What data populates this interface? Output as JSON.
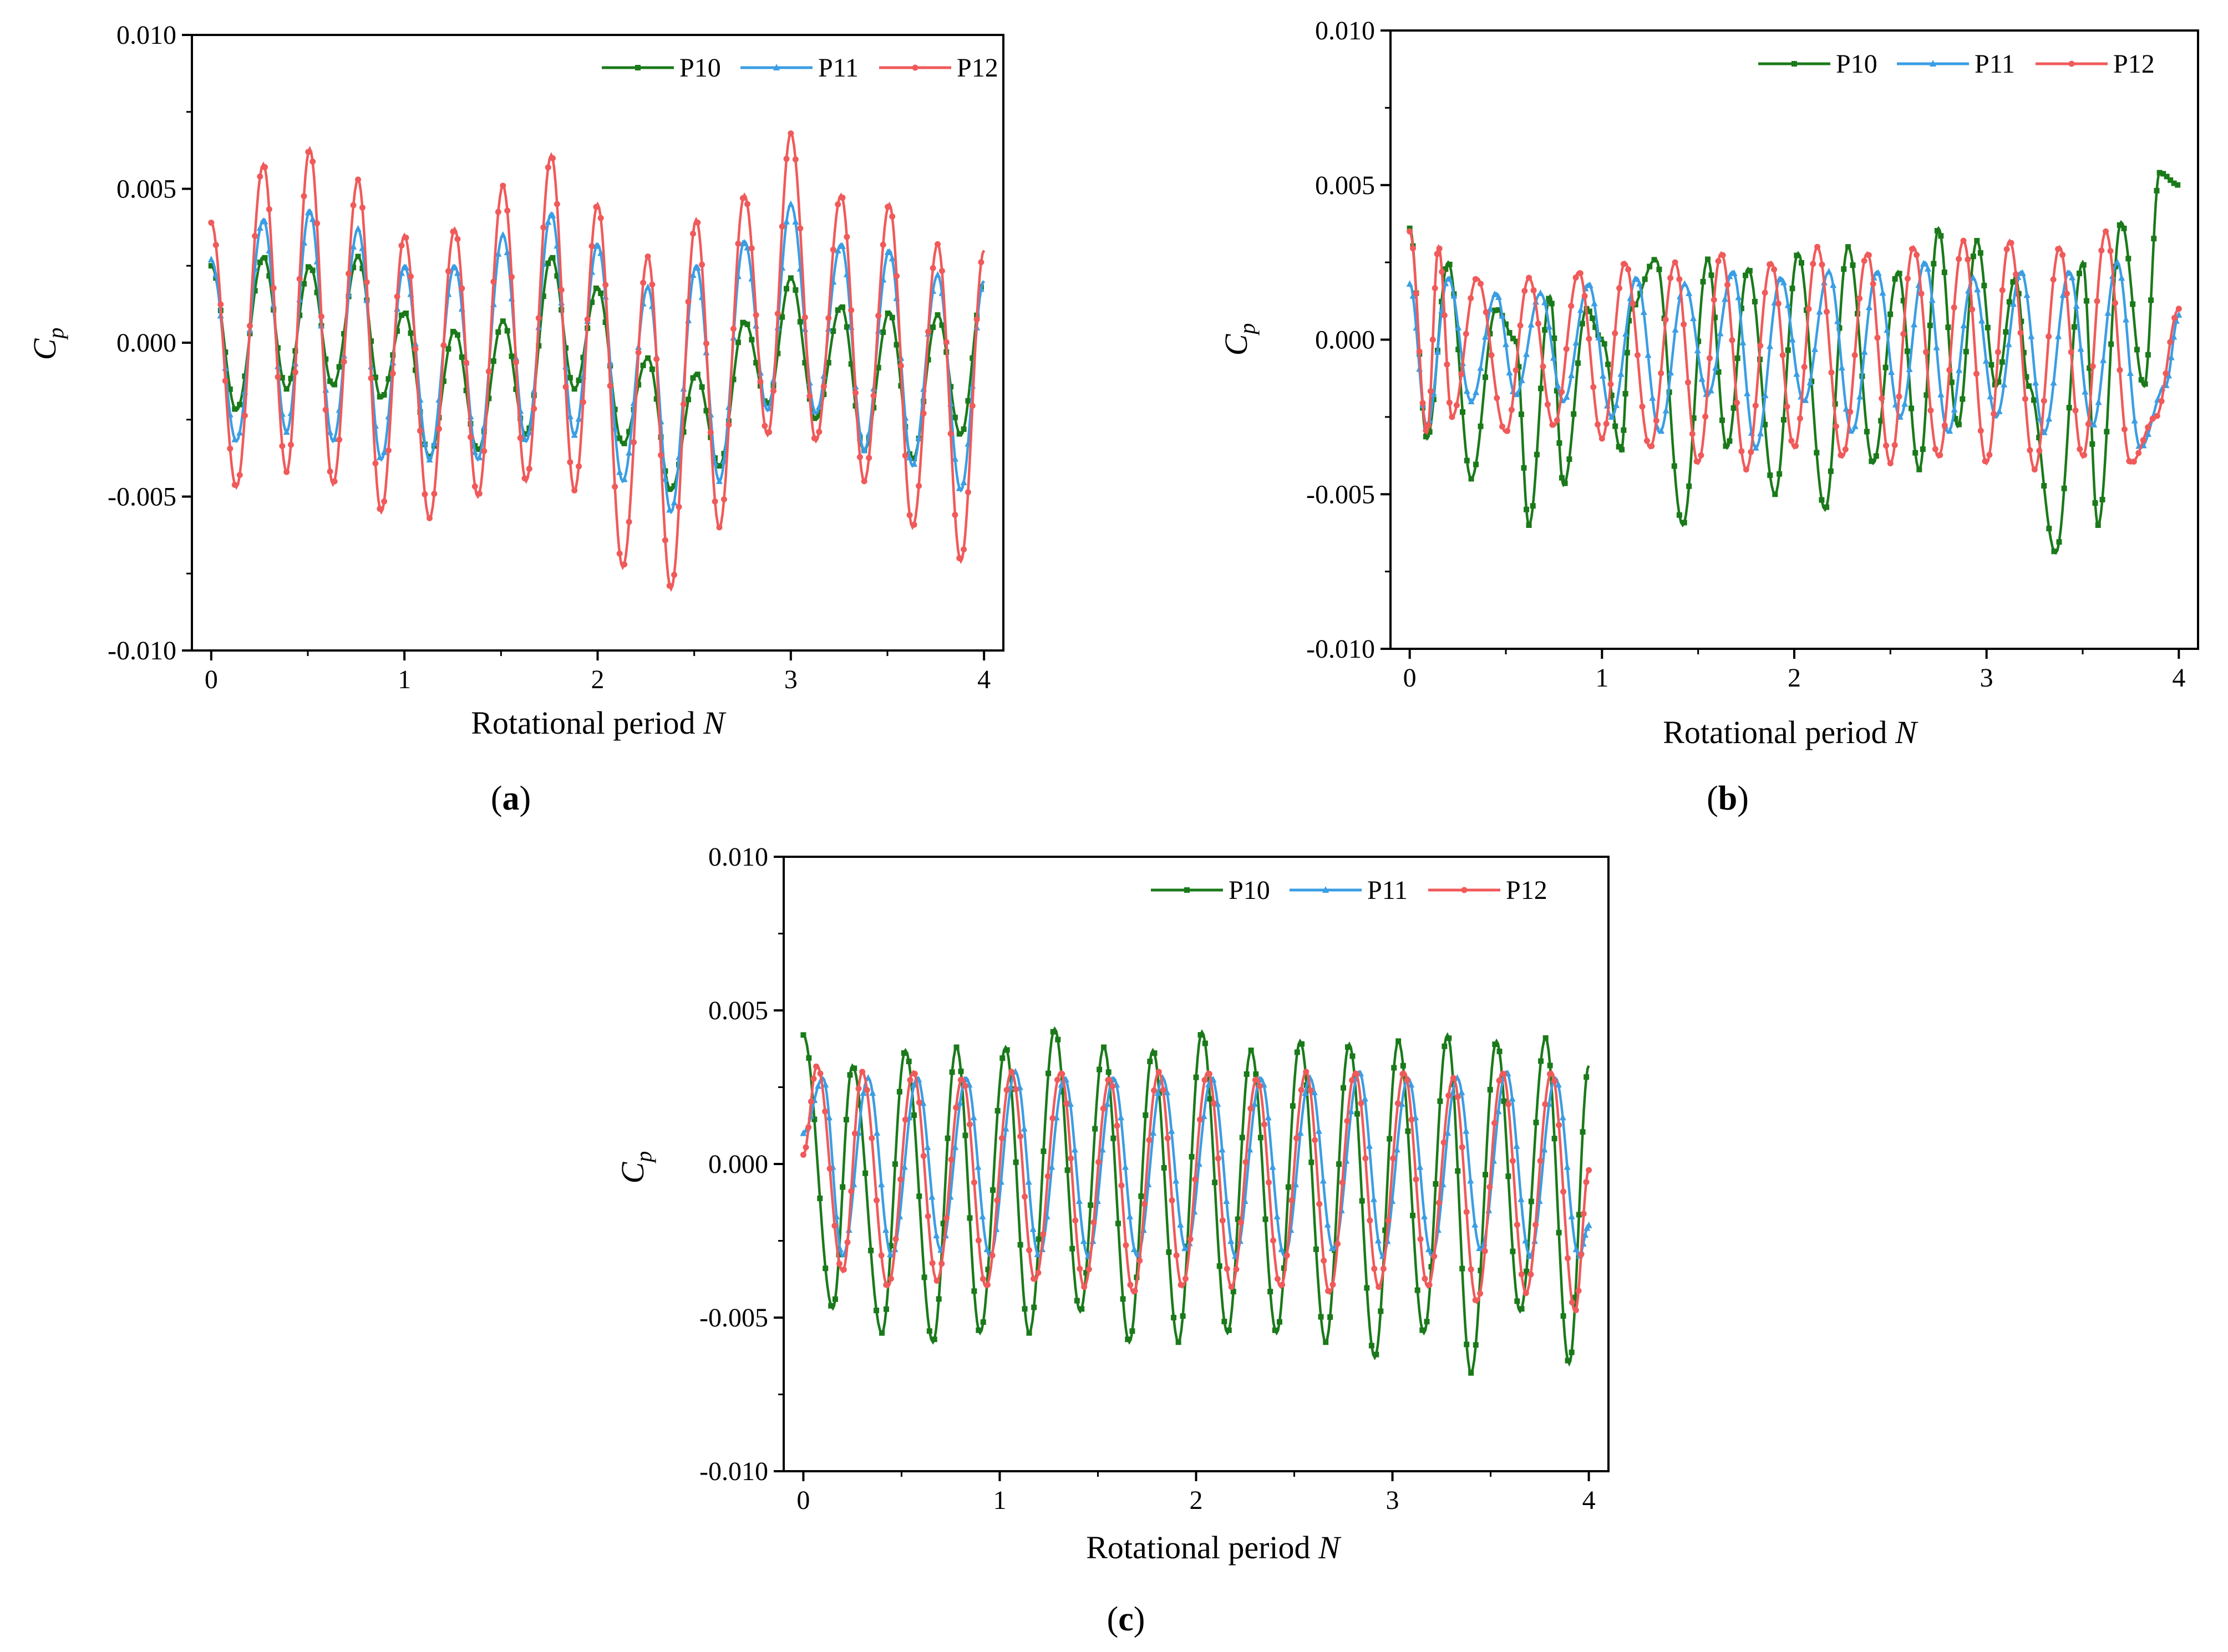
{
  "figure": {
    "captions": [
      "(a)",
      "(b)",
      "(c)"
    ],
    "caption_letters": [
      "a",
      "b",
      "c"
    ]
  },
  "chart_data": [
    {
      "id": "a",
      "type": "line",
      "title": "",
      "caption": "(a)",
      "xlabel": "Rotational period N",
      "xlabel_text": "Rotational period ",
      "xlabel_var": "N",
      "ylabel": "Cp",
      "ylabel_main": "C",
      "ylabel_sub": "p",
      "xlim": [
        -0.1,
        4.1
      ],
      "ylim": [
        -0.01,
        0.01
      ],
      "xticks": [
        0,
        1,
        2,
        3,
        4
      ],
      "xtick_labels": [
        "0",
        "1",
        "2",
        "3",
        "4"
      ],
      "yticks": [
        -0.01,
        -0.005,
        0.0,
        0.005,
        0.01
      ],
      "ytick_labels": [
        "-0.010",
        "-0.005",
        "0.000",
        "0.005",
        "0.010"
      ],
      "legend": [
        "P10",
        "P11",
        "P12"
      ],
      "legend_position": "top-right",
      "series": [
        {
          "name": "P10",
          "color": "#1a7a1a",
          "marker": "square",
          "x": [
            0,
            0.13,
            0.27,
            0.39,
            0.51,
            0.63,
            0.76,
            0.88,
            1.0,
            1.13,
            1.26,
            1.38,
            1.51,
            1.63,
            1.76,
            1.88,
            2.0,
            2.13,
            2.26,
            2.38,
            2.51,
            2.63,
            2.76,
            2.88,
            3.0,
            3.13,
            3.26,
            3.38,
            3.51,
            3.63,
            3.76,
            3.88,
            4.0
          ],
          "y": [
            0.0025,
            -0.0022,
            0.0028,
            -0.0015,
            0.0025,
            -0.0014,
            0.0028,
            -0.0018,
            0.001,
            -0.0037,
            0.0004,
            -0.0035,
            0.0007,
            -0.003,
            0.0028,
            -0.0015,
            0.0018,
            -0.0033,
            -0.0005,
            -0.0048,
            -0.001,
            -0.004,
            0.0007,
            -0.002,
            0.0021,
            -0.0025,
            0.0012,
            -0.0035,
            0.001,
            -0.0038,
            0.0009,
            -0.003,
            0.002
          ]
        },
        {
          "name": "P11",
          "color": "#3a9ee4",
          "marker": "triangle",
          "x": [
            0,
            0.13,
            0.27,
            0.39,
            0.51,
            0.63,
            0.76,
            0.88,
            1.0,
            1.13,
            1.26,
            1.38,
            1.51,
            1.63,
            1.76,
            1.88,
            2.0,
            2.13,
            2.26,
            2.38,
            2.51,
            2.63,
            2.76,
            2.88,
            3.0,
            3.13,
            3.26,
            3.38,
            3.51,
            3.63,
            3.76,
            3.88,
            4.0
          ],
          "y": [
            0.0027,
            -0.0032,
            0.004,
            -0.0029,
            0.0043,
            -0.0032,
            0.0037,
            -0.0038,
            0.0025,
            -0.0038,
            0.0025,
            -0.0038,
            0.0035,
            -0.0032,
            0.0042,
            -0.003,
            0.0032,
            -0.0045,
            0.0018,
            -0.0055,
            0.0025,
            -0.0045,
            0.0033,
            -0.0022,
            0.0045,
            -0.0023,
            0.0032,
            -0.0035,
            0.003,
            -0.004,
            0.0022,
            -0.0048,
            0.002
          ]
        },
        {
          "name": "P12",
          "color": "#f05a5a",
          "marker": "circle",
          "x": [
            0,
            0.13,
            0.27,
            0.39,
            0.51,
            0.63,
            0.76,
            0.88,
            1.0,
            1.13,
            1.26,
            1.38,
            1.51,
            1.63,
            1.76,
            1.88,
            2.0,
            2.13,
            2.26,
            2.38,
            2.51,
            2.63,
            2.76,
            2.88,
            3.0,
            3.13,
            3.26,
            3.38,
            3.51,
            3.63,
            3.76,
            3.88,
            4.0
          ],
          "y": [
            0.0039,
            -0.0047,
            0.0058,
            -0.0042,
            0.0063,
            -0.0046,
            0.0053,
            -0.0055,
            0.0035,
            -0.0057,
            0.0037,
            -0.005,
            0.0051,
            -0.0045,
            0.0061,
            -0.0048,
            0.0045,
            -0.0073,
            0.0028,
            -0.008,
            0.004,
            -0.006,
            0.0048,
            -0.003,
            0.0068,
            -0.0032,
            0.0048,
            -0.0045,
            0.0045,
            -0.006,
            0.0032,
            -0.0071,
            0.003
          ]
        }
      ]
    },
    {
      "id": "b",
      "type": "line",
      "title": "",
      "caption": "(b)",
      "xlabel": "Rotational period N",
      "xlabel_text": "Rotational period ",
      "xlabel_var": "N",
      "ylabel": "Cp",
      "ylabel_main": "C",
      "ylabel_sub": "p",
      "xlim": [
        -0.1,
        4.1
      ],
      "ylim": [
        -0.01,
        0.01
      ],
      "xticks": [
        0,
        1,
        2,
        3,
        4
      ],
      "xtick_labels": [
        "0",
        "1",
        "2",
        "3",
        "4"
      ],
      "yticks": [
        -0.01,
        -0.005,
        0.0,
        0.005,
        0.01
      ],
      "ytick_labels": [
        "-0.010",
        "-0.005",
        "0.000",
        "0.005",
        "0.010"
      ],
      "legend": [
        "P10",
        "P11",
        "P12"
      ],
      "legend_position": "top-right",
      "series": [
        {
          "name": "P10",
          "color": "#1a7a1a",
          "marker": "square",
          "x": [
            0,
            0.09,
            0.2,
            0.32,
            0.45,
            0.55,
            0.62,
            0.73,
            0.8,
            0.92,
            1.0,
            1.1,
            1.15,
            1.28,
            1.42,
            1.55,
            1.65,
            1.76,
            1.9,
            2.02,
            2.16,
            2.28,
            2.41,
            2.54,
            2.65,
            2.75,
            2.85,
            2.95,
            3.05,
            3.15,
            3.22,
            3.36,
            3.5,
            3.58,
            3.7,
            3.82,
            3.9,
            4.0
          ],
          "y": [
            0.0036,
            -0.0032,
            0.0025,
            -0.0045,
            0.001,
            0.0,
            -0.006,
            0.0014,
            -0.0047,
            0.001,
            0.0,
            -0.0036,
            0.001,
            0.0026,
            -0.006,
            0.0026,
            -0.0035,
            0.0023,
            -0.005,
            0.0028,
            -0.0055,
            0.003,
            -0.004,
            0.0022,
            -0.0042,
            0.0036,
            -0.0028,
            0.0032,
            -0.0015,
            0.002,
            -0.0015,
            -0.0069,
            0.0025,
            -0.006,
            0.0038,
            -0.0015,
            0.0054,
            0.005
          ]
        },
        {
          "name": "P11",
          "color": "#3a9ee4",
          "marker": "triangle",
          "x": [
            0,
            0.09,
            0.2,
            0.32,
            0.45,
            0.55,
            0.68,
            0.8,
            0.93,
            1.05,
            1.18,
            1.3,
            1.43,
            1.55,
            1.68,
            1.8,
            1.93,
            2.05,
            2.18,
            2.3,
            2.43,
            2.55,
            2.68,
            2.8,
            2.93,
            3.05,
            3.18,
            3.3,
            3.43,
            3.55,
            3.68,
            3.8,
            3.93,
            4.0
          ],
          "y": [
            0.0018,
            -0.0028,
            0.002,
            -0.002,
            0.0015,
            -0.0018,
            0.0015,
            -0.002,
            0.0018,
            -0.0025,
            0.002,
            -0.003,
            0.0018,
            -0.0018,
            0.0022,
            -0.0035,
            0.002,
            -0.002,
            0.0022,
            -0.003,
            0.0022,
            -0.0025,
            0.0025,
            -0.003,
            0.002,
            -0.0025,
            0.0022,
            -0.003,
            0.0022,
            -0.0028,
            0.0025,
            -0.0035,
            -0.0015,
            0.0008
          ]
        },
        {
          "name": "P12",
          "color": "#f05a5a",
          "marker": "circle",
          "x": [
            0,
            0.09,
            0.15,
            0.22,
            0.35,
            0.5,
            0.62,
            0.75,
            0.88,
            1.0,
            1.12,
            1.25,
            1.38,
            1.5,
            1.62,
            1.75,
            1.88,
            2.0,
            2.12,
            2.25,
            2.38,
            2.5,
            2.62,
            2.75,
            2.88,
            3.0,
            3.12,
            3.25,
            3.38,
            3.5,
            3.62,
            3.75,
            3.88,
            4.0
          ],
          "y": [
            0.0035,
            -0.003,
            0.003,
            -0.0025,
            0.002,
            -0.003,
            0.002,
            -0.0028,
            0.0022,
            -0.0032,
            0.0025,
            -0.0035,
            0.0025,
            -0.004,
            0.0028,
            -0.0042,
            0.0025,
            -0.0035,
            0.003,
            -0.0038,
            0.0028,
            -0.004,
            0.003,
            -0.0038,
            0.0032,
            -0.004,
            0.0032,
            -0.0042,
            0.003,
            -0.0038,
            0.0035,
            -0.004,
            -0.0025,
            0.001
          ]
        }
      ]
    },
    {
      "id": "c",
      "type": "line",
      "title": "",
      "caption": "(c)",
      "xlabel": "Rotational period N",
      "xlabel_text": "Rotational period ",
      "xlabel_var": "N",
      "ylabel": "Cp",
      "ylabel_main": "C",
      "ylabel_sub": "p",
      "xlim": [
        -0.1,
        4.1
      ],
      "ylim": [
        -0.01,
        0.01
      ],
      "xticks": [
        0,
        1,
        2,
        3,
        4
      ],
      "xtick_labels": [
        "0",
        "1",
        "2",
        "3",
        "4"
      ],
      "yticks": [
        -0.01,
        -0.005,
        0.0,
        0.005,
        0.01
      ],
      "ytick_labels": [
        "-0.010",
        "-0.005",
        "0.000",
        "0.005",
        "0.010"
      ],
      "legend": [
        "P10",
        "P11",
        "P12"
      ],
      "legend_position": "top-right",
      "series": [
        {
          "name": "P10",
          "color": "#1a7a1a",
          "marker": "square",
          "x": [
            0,
            0.15,
            0.25,
            0.4,
            0.52,
            0.66,
            0.78,
            0.9,
            1.03,
            1.15,
            1.28,
            1.41,
            1.53,
            1.66,
            1.78,
            1.91,
            2.03,
            2.16,
            2.28,
            2.41,
            2.53,
            2.66,
            2.78,
            2.91,
            3.03,
            3.16,
            3.28,
            3.4,
            3.53,
            3.65,
            3.78,
            3.9,
            4.0
          ],
          "y": [
            0.0042,
            -0.0047,
            0.0032,
            -0.0055,
            0.0037,
            -0.0058,
            0.0038,
            -0.0055,
            0.0038,
            -0.0055,
            0.0044,
            -0.0048,
            0.0038,
            -0.0058,
            0.0037,
            -0.0058,
            0.0043,
            -0.0055,
            0.0037,
            -0.0055,
            0.004,
            -0.0058,
            0.0039,
            -0.0063,
            0.004,
            -0.0055,
            0.0042,
            -0.0068,
            0.004,
            -0.0048,
            0.0041,
            -0.0065,
            0.0032
          ]
        },
        {
          "name": "P11",
          "color": "#3a9ee4",
          "marker": "triangle",
          "x": [
            0,
            0.1,
            0.2,
            0.33,
            0.45,
            0.58,
            0.7,
            0.83,
            0.95,
            1.08,
            1.2,
            1.33,
            1.45,
            1.58,
            1.7,
            1.83,
            1.95,
            2.08,
            2.2,
            2.33,
            2.45,
            2.58,
            2.7,
            2.83,
            2.95,
            3.08,
            3.2,
            3.33,
            3.45,
            3.58,
            3.7,
            3.83,
            3.95,
            4.0
          ],
          "y": [
            0.001,
            0.0028,
            -0.003,
            0.0028,
            -0.003,
            0.0028,
            -0.0028,
            0.0028,
            -0.003,
            0.003,
            -0.003,
            0.0028,
            -0.003,
            0.0028,
            -0.003,
            0.0028,
            -0.0028,
            0.0028,
            -0.003,
            0.0028,
            -0.003,
            0.0028,
            -0.0028,
            0.003,
            -0.003,
            0.0028,
            -0.003,
            0.0028,
            -0.0028,
            0.003,
            -0.003,
            0.0028,
            -0.003,
            -0.002
          ]
        },
        {
          "name": "P12",
          "color": "#f05a5a",
          "marker": "circle",
          "x": [
            0,
            0.07,
            0.2,
            0.3,
            0.43,
            0.56,
            0.68,
            0.81,
            0.93,
            1.06,
            1.18,
            1.31,
            1.43,
            1.56,
            1.68,
            1.81,
            1.93,
            2.06,
            2.18,
            2.31,
            2.43,
            2.56,
            2.68,
            2.81,
            2.93,
            3.06,
            3.18,
            3.31,
            3.43,
            3.56,
            3.68,
            3.81,
            3.93,
            4.0
          ],
          "y": [
            0.0003,
            0.0032,
            -0.0035,
            0.003,
            -0.004,
            0.003,
            -0.0038,
            0.0028,
            -0.004,
            0.003,
            -0.0038,
            0.003,
            -0.004,
            0.0028,
            -0.0042,
            0.003,
            -0.004,
            0.003,
            -0.004,
            0.0028,
            -0.004,
            0.003,
            -0.0042,
            0.003,
            -0.004,
            0.003,
            -0.004,
            0.0028,
            -0.0045,
            0.003,
            -0.0042,
            0.003,
            -0.0048,
            -0.0002
          ]
        }
      ]
    }
  ]
}
